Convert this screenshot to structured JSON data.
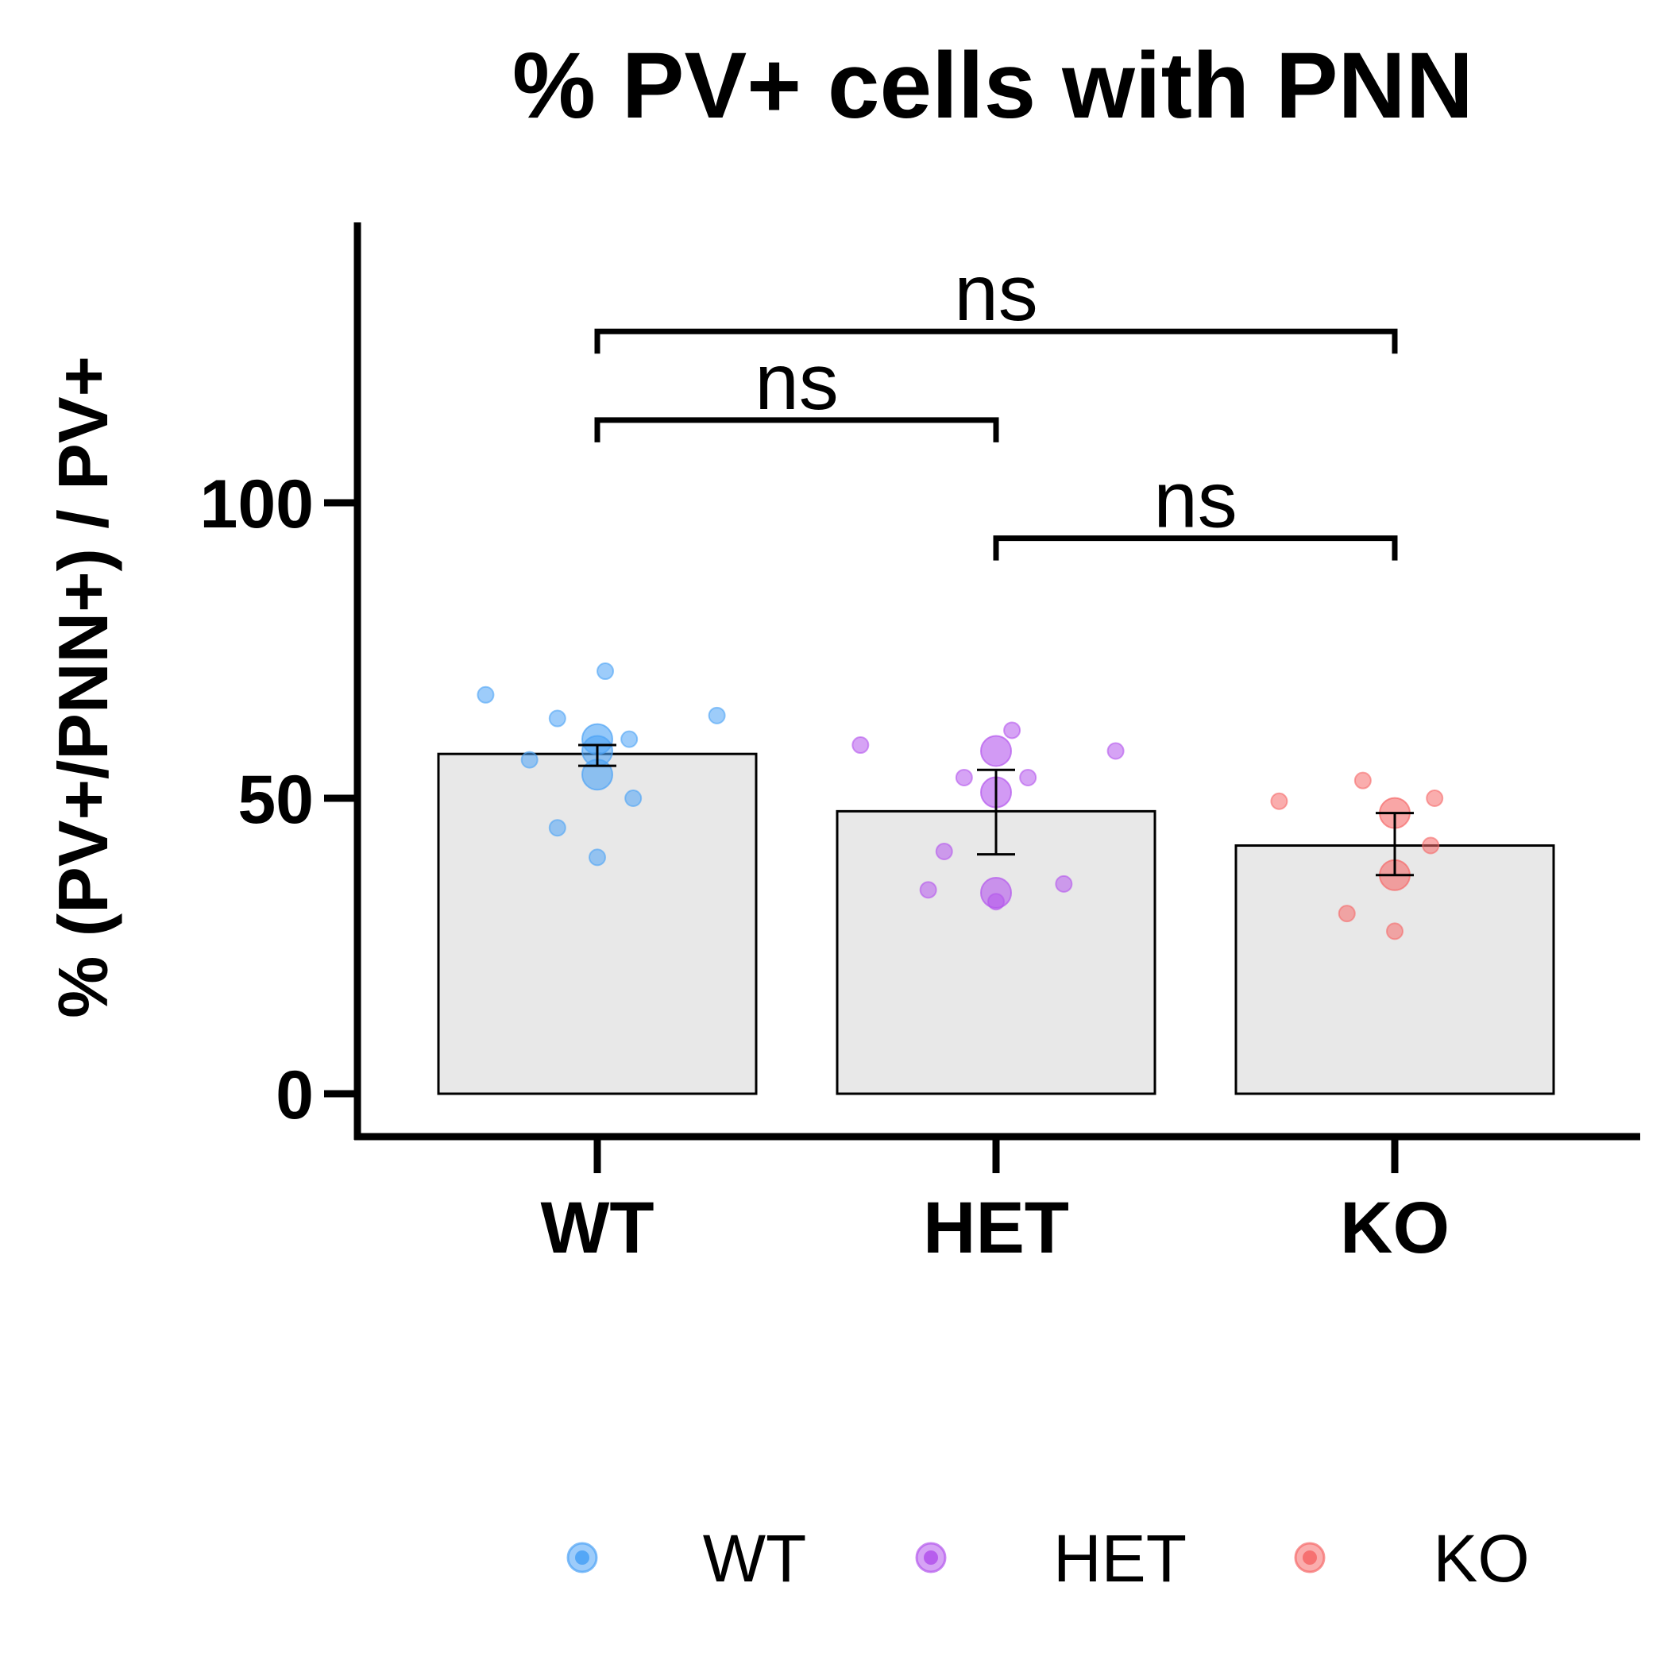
{
  "chart_data": {
    "type": "bar",
    "title": "% PV+ cells with PNN",
    "ylabel": "% (PV+/PNN+) / PV+",
    "xlabel": "",
    "categories": [
      "WT",
      "HET",
      "KO"
    ],
    "values": [
      57.5,
      47.8,
      42.0
    ],
    "error_low": [
      55.5,
      40.5,
      37.0
    ],
    "error_high": [
      59.0,
      54.8,
      47.5
    ],
    "ylim": [
      -6,
      147
    ],
    "yticks": [
      0,
      50,
      100
    ],
    "colors": {
      "WT": "#4da3f5",
      "HET": "#b457ec",
      "KO": "#f56a6a"
    },
    "points": {
      "WT": {
        "small": [
          {
            "dx": -0.28,
            "y": 67.5
          },
          {
            "dx": 0.02,
            "y": 71.5
          },
          {
            "dx": 0.3,
            "y": 64.0
          },
          {
            "dx": -0.1,
            "y": 63.5
          },
          {
            "dx": 0.08,
            "y": 60.0
          },
          {
            "dx": -0.17,
            "y": 56.5
          },
          {
            "dx": 0.09,
            "y": 50.0
          },
          {
            "dx": -0.1,
            "y": 45.0
          },
          {
            "dx": 0.0,
            "y": 40.0
          }
        ],
        "large": [
          {
            "dx": 0.0,
            "y": 60.0
          },
          {
            "dx": 0.0,
            "y": 58.0
          },
          {
            "dx": 0.0,
            "y": 54.0
          }
        ]
      },
      "HET": {
        "small": [
          {
            "dx": -0.34,
            "y": 59.0
          },
          {
            "dx": 0.04,
            "y": 61.5
          },
          {
            "dx": 0.3,
            "y": 58.0
          },
          {
            "dx": -0.08,
            "y": 53.5
          },
          {
            "dx": 0.08,
            "y": 53.5
          },
          {
            "dx": -0.13,
            "y": 41.0
          },
          {
            "dx": -0.17,
            "y": 34.5
          },
          {
            "dx": 0.17,
            "y": 35.5
          },
          {
            "dx": 0.0,
            "y": 32.5
          }
        ],
        "large": [
          {
            "dx": 0.0,
            "y": 58.0
          },
          {
            "dx": 0.0,
            "y": 51.0
          },
          {
            "dx": 0.0,
            "y": 34.0
          }
        ]
      },
      "KO": {
        "small": [
          {
            "dx": -0.29,
            "y": 49.5
          },
          {
            "dx": -0.08,
            "y": 53.0
          },
          {
            "dx": 0.1,
            "y": 50.0
          },
          {
            "dx": 0.09,
            "y": 42.0
          },
          {
            "dx": -0.12,
            "y": 30.5
          },
          {
            "dx": 0.0,
            "y": 27.5
          }
        ],
        "large": [
          {
            "dx": 0.0,
            "y": 47.5
          },
          {
            "dx": 0.0,
            "y": 37.0
          }
        ]
      }
    },
    "comparisons": [
      {
        "from": "WT",
        "to": "KO",
        "y": 129,
        "label": "ns"
      },
      {
        "from": "WT",
        "to": "HET",
        "y": 114,
        "label": "ns"
      },
      {
        "from": "HET",
        "to": "KO",
        "y": 94,
        "label": "ns"
      }
    ],
    "legend": {
      "placement": "bottom",
      "entries": [
        "WT",
        "HET",
        "KO"
      ]
    }
  }
}
